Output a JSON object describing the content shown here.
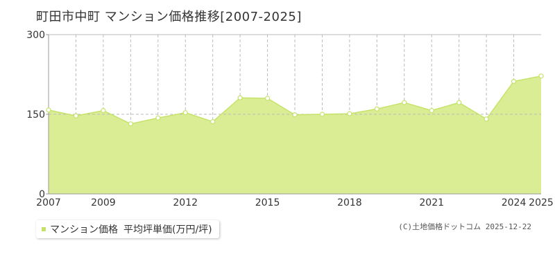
{
  "page": {
    "title": "町田市中町 マンション価格推移[2007-2025]",
    "copyright": "(C)土地価格ドットコム 2025-12-22"
  },
  "legend": {
    "series_label": "マンション価格",
    "measure_label": "平均坪単価(万円/坪)"
  },
  "colors": {
    "fill": "#dbed94",
    "line": "#c5e36a",
    "marker_fill": "#ffffff",
    "grid": "#bbbbbb",
    "axis": "#999999"
  },
  "chart_data": {
    "type": "area",
    "title": "町田市中町 マンション価格推移[2007-2025]",
    "x": [
      2007,
      2008,
      2009,
      2010,
      2011,
      2012,
      2013,
      2014,
      2015,
      2016,
      2017,
      2018,
      2019,
      2020,
      2021,
      2022,
      2023,
      2024,
      2025
    ],
    "series": [
      {
        "name": "マンション価格",
        "values": [
          158,
          147,
          157,
          132,
          143,
          153,
          136,
          181,
          180,
          149,
          150,
          151,
          160,
          172,
          157,
          172,
          141,
          212,
          222
        ]
      }
    ],
    "xlim": [
      2007,
      2025
    ],
    "ylim": [
      0,
      300
    ],
    "yticks": [
      0,
      150,
      300
    ],
    "xtick_labels": [
      "2007",
      "2009",
      "2012",
      "2015",
      "2018",
      "2021",
      "2024",
      "2025"
    ],
    "vertical_grid": true,
    "legend_position": "bottom-left"
  }
}
